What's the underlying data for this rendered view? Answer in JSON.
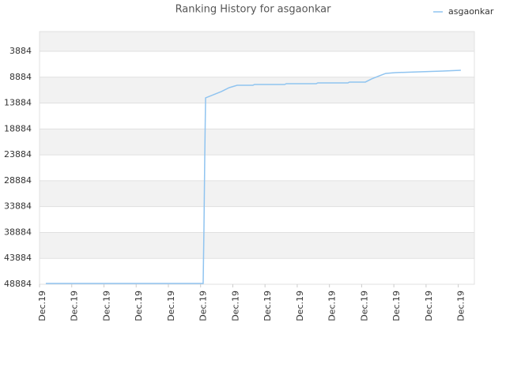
{
  "chart_data": {
    "type": "line",
    "title": "Ranking History for asgaonkar",
    "x": [
      0.39,
      10.16,
      10.21,
      10.26,
      10.31,
      11.29,
      11.78,
      12.27,
      13.25,
      13.35,
      15.22,
      15.32,
      17.18,
      17.28,
      19.15,
      19.24,
      20.23,
      20.62,
      21.11,
      21.5,
      22.09,
      23.56,
      25.03,
      26.16
    ],
    "series": [
      {
        "name": "asgaonkar",
        "color": "#90c4f0",
        "values": [
          48730,
          48730,
          38000,
          24000,
          12880,
          11660,
          10900,
          10440,
          10440,
          10290,
          10290,
          10135,
          10135,
          9980,
          9980,
          9830,
          9830,
          9220,
          8610,
          8150,
          8000,
          7850,
          7700,
          7544
        ]
      }
    ],
    "xlim": [
      0,
      27
    ],
    "xticks": [
      {
        "value": 0,
        "label": "Dec.19"
      },
      {
        "value": 2,
        "label": "Dec.19"
      },
      {
        "value": 4,
        "label": "Dec.19"
      },
      {
        "value": 6,
        "label": "Dec.19"
      },
      {
        "value": 8,
        "label": "Dec.19"
      },
      {
        "value": 10,
        "label": "Dec.19"
      },
      {
        "value": 12,
        "label": "Dec.19"
      },
      {
        "value": 14,
        "label": "Dec.19"
      },
      {
        "value": 16,
        "label": "Dec.19"
      },
      {
        "value": 18,
        "label": "Dec.19"
      },
      {
        "value": 20,
        "label": "Dec.19"
      },
      {
        "value": 22,
        "label": "Dec.19"
      },
      {
        "value": 24,
        "label": "Dec.19"
      },
      {
        "value": 26,
        "label": "Dec.19"
      }
    ],
    "ylim": [
      48884,
      71
    ],
    "yticks": [
      3884,
      8884,
      13884,
      18884,
      23884,
      28884,
      33884,
      38884,
      43884,
      48884
    ],
    "grid": true,
    "legend": "top-right"
  }
}
